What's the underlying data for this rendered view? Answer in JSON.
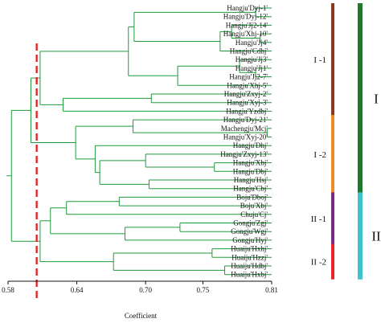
{
  "chart_data": {
    "type": "dendrogram",
    "xlabel": "Coefficient",
    "xlim": [
      0.58,
      0.81
    ],
    "x_ticks": [
      "0.58",
      "0.64",
      "0.70",
      "0.75",
      "0.81"
    ],
    "cutoff_line": {
      "coefficient": 0.605,
      "color": "#e8262a",
      "style": "dashed"
    },
    "branch_color": "#1e9a3c",
    "leaves": [
      "Hangju'Dyj-1'",
      "Hangju'Dyj-12'",
      "Hangju'Jj2-14'",
      "Hangju'Xhj-10'",
      "Hangju'Jj4'",
      "Hangju'Cdhj'",
      "Hangju'Jj3'",
      "Hangju'Jj1'",
      "Hangju'Jj2-7'",
      "Hangju'Xhj-5'",
      "Hangju'Zxyj-2'",
      "Hangju'Xyj-3'",
      "Hangju'Yzdbj'",
      "Hangju'Dyj-21'",
      "Machengju'Mcj'",
      "Hangju'Xyj-20'",
      "Hangju'Dhj'",
      "Hangju'Zxyj-13'",
      "Hangju'Xbj'",
      "Hangju'Dbj'",
      "Hangju'Hsj'",
      "Hangju'Cbj'",
      "Boju'Dboj'",
      "Boju'Xbj'",
      "Chuju'Cj'",
      "Gongju'Zgj'",
      "Gongju'Wgj'",
      "Gongju'Hyj'",
      "Huaiju'Hxhj'",
      "Huaiju'Hzzj'",
      "Huaiju'Hdbj'",
      "Huaiju'Hxbj'"
    ],
    "clusters": [
      {
        "label": "I -1",
        "color": "#8b3a1e",
        "level": "subgroup",
        "leaves": [
          0,
          12
        ]
      },
      {
        "label": "I -2",
        "color": "#f08a24",
        "level": "subgroup",
        "leaves": [
          13,
          21
        ]
      },
      {
        "label": "II -1",
        "color": "#7a2a86",
        "level": "subgroup",
        "leaves": [
          22,
          27
        ]
      },
      {
        "label": "II -2",
        "color": "#e8262a",
        "level": "subgroup",
        "leaves": [
          28,
          31
        ]
      },
      {
        "label": "I",
        "color": "#1e7a2a",
        "level": "group",
        "leaves": [
          0,
          21
        ]
      },
      {
        "label": "II",
        "color": "#3cc3cc",
        "level": "group",
        "leaves": [
          22,
          31
        ]
      }
    ],
    "merges": [
      {
        "id": "A1",
        "a": 3,
        "b": 4,
        "coef": 0.8
      },
      {
        "id": "A2",
        "a": 2,
        "b": "A1",
        "coef": 0.775
      },
      {
        "id": "A3",
        "a": "A2",
        "b": 5,
        "coef": 0.765
      },
      {
        "id": "A4",
        "a": 0,
        "b": 1,
        "coef": 0.796
      },
      {
        "id": "A5",
        "a": "A4",
        "b": "A3",
        "coef": 0.69
      },
      {
        "id": "A6",
        "a": 7,
        "b": 8,
        "coef": 0.796
      },
      {
        "id": "A7",
        "a": 6,
        "b": "A6",
        "coef": 0.782
      },
      {
        "id": "A8",
        "a": "A7",
        "b": 9,
        "coef": 0.728
      },
      {
        "id": "A9",
        "a": "A5",
        "b": "A8",
        "coef": 0.685
      },
      {
        "id": "A10",
        "a": 10,
        "b": 11,
        "coef": 0.705
      },
      {
        "id": "A11",
        "a": "A10",
        "b": 12,
        "coef": 0.628
      },
      {
        "id": "A12",
        "a": "A9",
        "b": "A11",
        "coef": 0.608
      },
      {
        "id": "B1",
        "a": 14,
        "b": 15,
        "coef": 0.806
      },
      {
        "id": "B2",
        "a": 13,
        "b": "B1",
        "coef": 0.689
      },
      {
        "id": "B3",
        "a": 18,
        "b": 19,
        "coef": 0.76
      },
      {
        "id": "B4",
        "a": 17,
        "b": "B3",
        "coef": 0.7
      },
      {
        "id": "B5",
        "a": 20,
        "b": 21,
        "coef": 0.703
      },
      {
        "id": "B6",
        "a": "B4",
        "b": "B5",
        "coef": 0.66
      },
      {
        "id": "B7",
        "a": 16,
        "b": "B6",
        "coef": 0.656
      },
      {
        "id": "B8",
        "a": "B2",
        "b": "B7",
        "coef": 0.639
      },
      {
        "id": "C1",
        "a": 0,
        "b": 0,
        "coef": 0,
        "skip": true
      },
      {
        "id": "D1",
        "a": 22,
        "b": 23,
        "coef": 0.677
      },
      {
        "id": "D2",
        "a": "D1",
        "b": 24,
        "coef": 0.631
      },
      {
        "id": "D3",
        "a": 25,
        "b": 26,
        "coef": 0.73
      },
      {
        "id": "D4",
        "a": "D3",
        "b": 27,
        "coef": 0.682
      },
      {
        "id": "D5",
        "a": "D2",
        "b": "D4",
        "coef": 0.617
      },
      {
        "id": "E1",
        "a": 28,
        "b": 29,
        "coef": 0.758
      },
      {
        "id": "E2",
        "a": 30,
        "b": 31,
        "coef": 0.769
      },
      {
        "id": "E3",
        "a": "E1",
        "b": "E2",
        "coef": 0.672
      },
      {
        "id": "F1",
        "a": "D5",
        "b": "E3",
        "coef": 0.608
      },
      {
        "id": "G1",
        "a": "A12",
        "b": "B8",
        "coef": 0.6
      },
      {
        "id": "ROOT",
        "a": "G1",
        "b": "F1",
        "coef": 0.583
      }
    ]
  }
}
